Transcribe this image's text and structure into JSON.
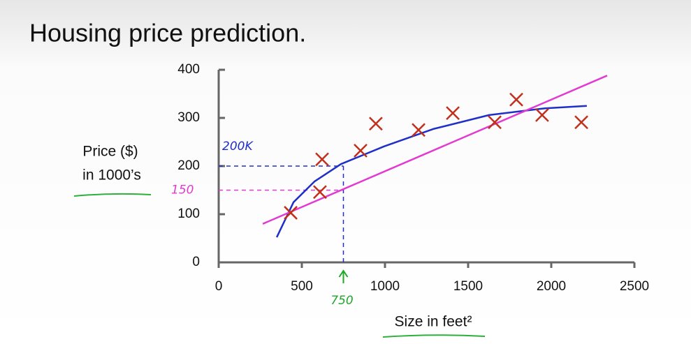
{
  "chart_data": {
    "type": "scatter",
    "title": "Housing price prediction.",
    "ylabel": [
      "Price ($)",
      "in 1000’s"
    ],
    "xlabel": "Size in feet²",
    "x": [
      433,
      622,
      609,
      853,
      945,
      1202,
      1408,
      1660,
      1790,
      1945,
      2181
    ],
    "y": [
      103,
      214,
      146,
      232,
      288,
      275,
      310,
      291,
      338,
      306,
      291
    ],
    "color": "#c0301c",
    "fits": [
      {
        "color": "#1f2fc8",
        "x": [
          349,
          450,
          576,
          735,
          996,
          1290,
          1626,
          1962,
          2214
        ],
        "y": [
          52,
          125,
          168,
          204,
          241,
          277,
          306,
          320,
          325
        ]
      },
      {
        "color": "#e23ad0",
        "x": [
          265,
          2336
        ],
        "y": [
          80,
          388
        ]
      }
    ],
    "guides": {
      "x": {
        "value": 750,
        "label": "750",
        "color": "#1fa82a"
      },
      "y": [
        {
          "value": 200,
          "label": "200K",
          "color": "#1f2fc8"
        },
        {
          "value": 150,
          "label": "150",
          "color": "#e23ad0"
        }
      ]
    },
    "xlim": [
      0,
      2500
    ],
    "ylim": [
      0,
      400
    ],
    "xticks": [
      0,
      500,
      1000,
      1500,
      2000,
      2500
    ],
    "yticks": [
      0,
      100,
      200,
      300,
      400
    ]
  }
}
